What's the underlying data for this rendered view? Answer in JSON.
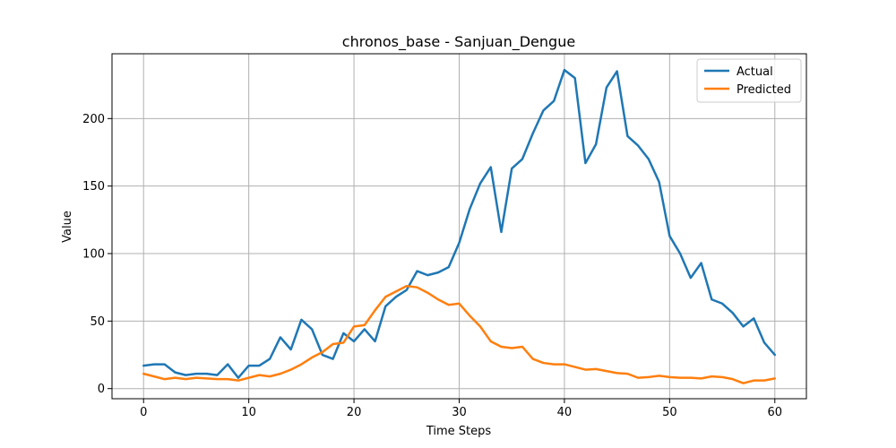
{
  "chart_data": {
    "type": "line",
    "title": "chronos_base - Sanjuan_Dengue",
    "xlabel": "Time Steps",
    "ylabel": "Value",
    "xlim": [
      -3,
      63
    ],
    "ylim": [
      -7.5,
      248
    ],
    "xticks": [
      0,
      10,
      20,
      30,
      40,
      50,
      60
    ],
    "yticks": [
      0,
      50,
      100,
      150,
      200
    ],
    "grid": true,
    "legend_position": "top-right",
    "x": [
      0,
      1,
      2,
      3,
      4,
      5,
      6,
      7,
      8,
      9,
      10,
      11,
      12,
      13,
      14,
      15,
      16,
      17,
      18,
      19,
      20,
      21,
      22,
      23,
      24,
      25,
      26,
      27,
      28,
      29,
      30,
      31,
      32,
      33,
      34,
      35,
      36,
      37,
      38,
      39,
      40,
      41,
      42,
      43,
      44,
      45,
      46,
      47,
      48,
      49,
      50,
      51,
      52,
      53,
      54,
      55,
      56,
      57,
      58,
      59,
      60
    ],
    "series": [
      {
        "name": "Actual",
        "color": "#1f77b4",
        "values": [
          17,
          18,
          18,
          12,
          10,
          11,
          11,
          10,
          18,
          8,
          17,
          17,
          22,
          38,
          29,
          51,
          44,
          25,
          22,
          41,
          35,
          44,
          35,
          61,
          68,
          73,
          87,
          84,
          86,
          90,
          108,
          133,
          152,
          164,
          116,
          163,
          170,
          189,
          206,
          213,
          236,
          230,
          167,
          181,
          223,
          235,
          187,
          180,
          170,
          153,
          113,
          100,
          82,
          93,
          66,
          63,
          56,
          46,
          52,
          34,
          25
        ]
      },
      {
        "name": "Predicted",
        "color": "#ff7f0e",
        "values": [
          11,
          9,
          7,
          8,
          7,
          8,
          7.5,
          7,
          7,
          6,
          8,
          10,
          9,
          11,
          14,
          18,
          23,
          27,
          33,
          34,
          46,
          47,
          58,
          68,
          72,
          76,
          75,
          71,
          66,
          62,
          63,
          54,
          46,
          35,
          31,
          30,
          31,
          22,
          19,
          18,
          18,
          16,
          14,
          14.5,
          13,
          11.5,
          11,
          8,
          8.5,
          9.5,
          8.5,
          8,
          8,
          7.5,
          9,
          8.5,
          7,
          4,
          6,
          6,
          7.5
        ]
      }
    ]
  }
}
